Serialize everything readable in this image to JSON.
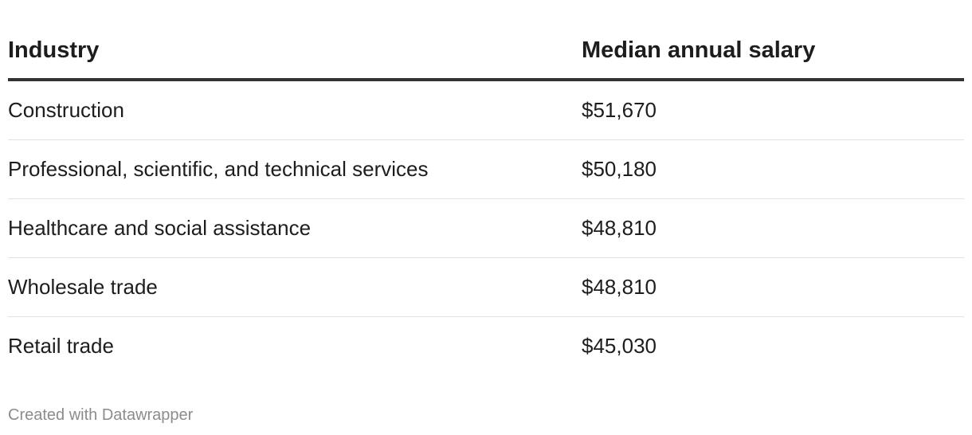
{
  "chart_data": {
    "type": "table",
    "columns": [
      "Industry",
      "Median annual salary"
    ],
    "rows": [
      [
        "Construction",
        "$51,670"
      ],
      [
        "Professional, scientific, and technical services",
        "$50,180"
      ],
      [
        "Healthcare and social assistance",
        "$48,810"
      ],
      [
        "Wholesale trade",
        "$48,810"
      ],
      [
        "Retail trade",
        "$45,030"
      ]
    ],
    "values": [
      51670,
      50180,
      48810,
      48810,
      45030
    ]
  },
  "footer": {
    "credit": "Created with Datawrapper"
  },
  "colors": {
    "text": "#1d1d1d",
    "header_rule": "#333333",
    "row_rule": "#e2e2e2",
    "credit": "#8c8c8c"
  }
}
